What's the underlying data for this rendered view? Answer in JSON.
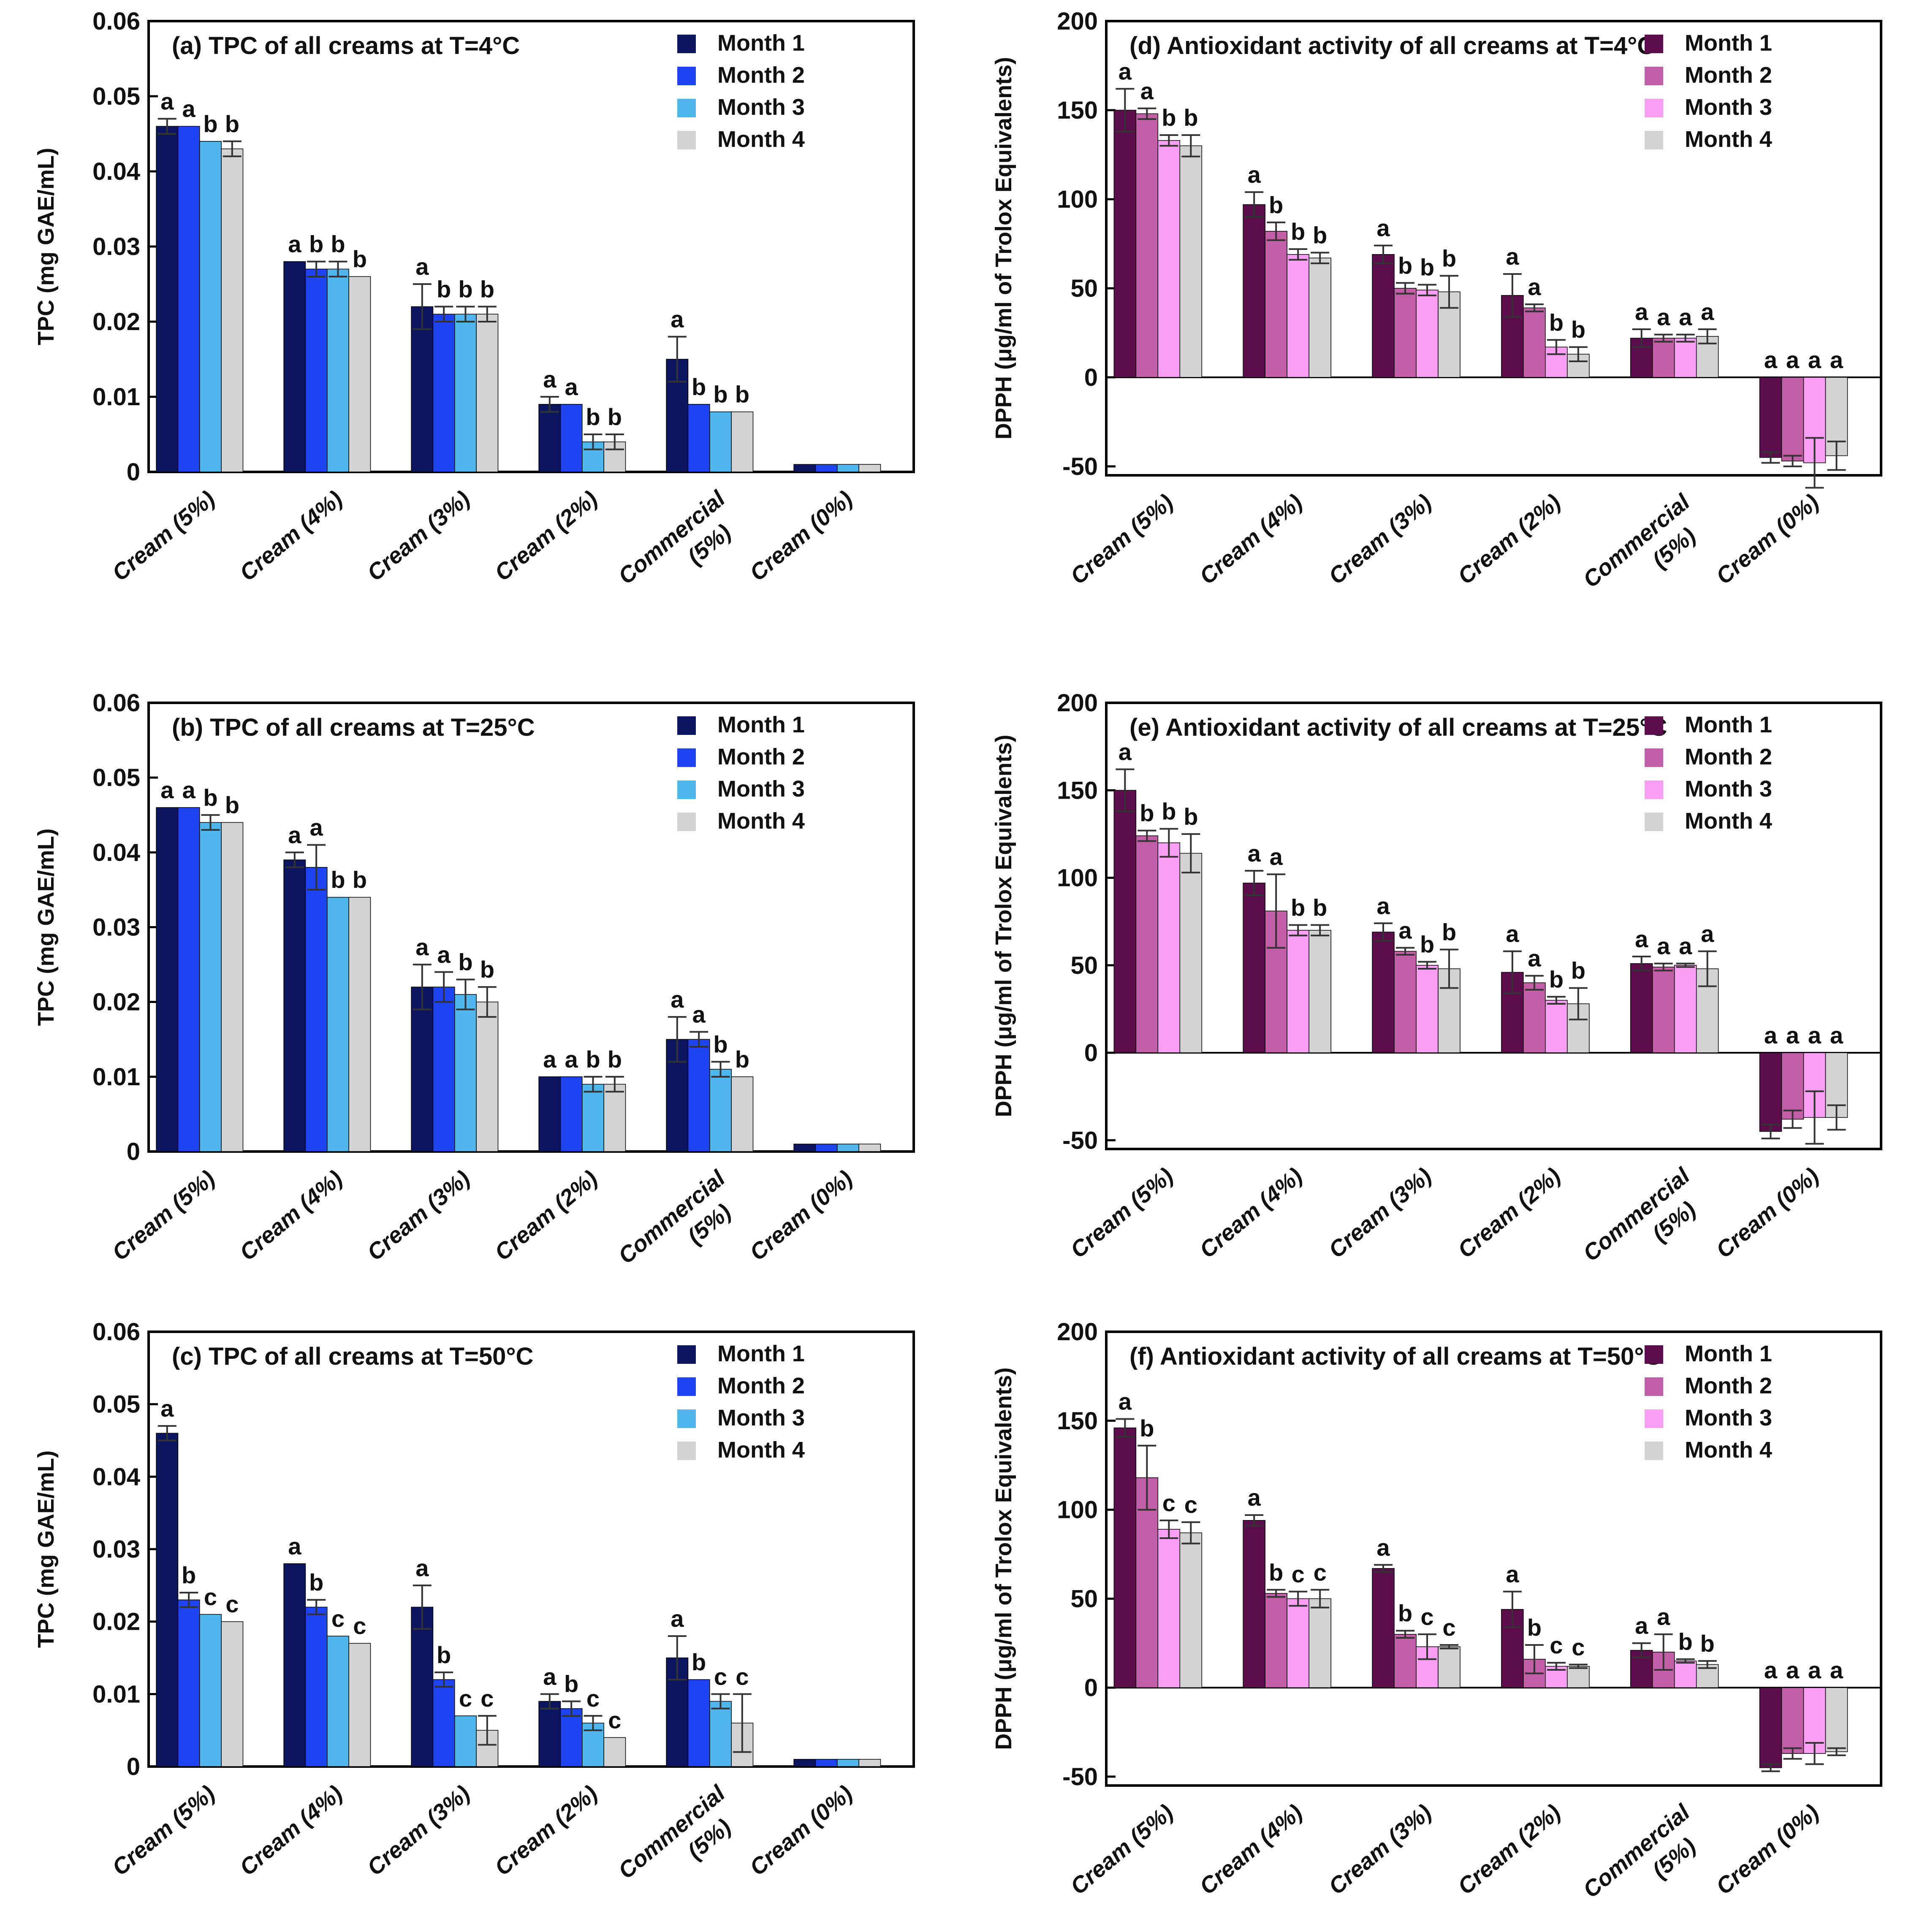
{
  "figure": {
    "colors": {
      "tpc": [
        "#0b1560",
        "#1d44f0",
        "#4fb6ee",
        "#d3d3d3"
      ],
      "dpph": [
        "#5c0d4c",
        "#c35fa6",
        "#fa9ff3",
        "#d3d3d3"
      ],
      "axis": "#000000"
    }
  },
  "chart_data": [
    {
      "id": "a",
      "type": "bar",
      "title": "(a) TPC of all creams at T=4°C",
      "ylabel": "TPC  (mg GAE/mL)",
      "ylim": [
        0,
        0.06
      ],
      "yticks": [
        "0",
        "0.01",
        "0.02",
        "0.03",
        "0.04",
        "0.05",
        "0.06"
      ],
      "tick_values": [
        0,
        0.01,
        0.02,
        0.03,
        0.04,
        0.05,
        0.06
      ],
      "categories": [
        [
          "Cream (5%)"
        ],
        [
          "Cream (4%)"
        ],
        [
          "Cream (3%)"
        ],
        [
          "Cream (2%)"
        ],
        [
          "Commercial",
          "(5%)"
        ],
        [
          "Cream (0%)"
        ]
      ],
      "palette": "tpc",
      "legend_position": "top-right",
      "series": [
        {
          "name": "Month 1",
          "values": [
            0.046,
            0.028,
            0.022,
            0.009,
            0.015,
            0.001
          ],
          "errors": [
            0.001,
            0.0,
            0.003,
            0.001,
            0.003,
            0.0
          ],
          "labels": [
            "a",
            "a",
            "a",
            "a",
            "a",
            ""
          ]
        },
        {
          "name": "Month 2",
          "values": [
            0.046,
            0.027,
            0.021,
            0.009,
            0.009,
            0.001
          ],
          "errors": [
            0.0,
            0.001,
            0.001,
            0.0,
            0.0,
            0.0
          ],
          "labels": [
            "a",
            "b",
            "b",
            "a",
            "b",
            ""
          ]
        },
        {
          "name": "Month 3",
          "values": [
            0.044,
            0.027,
            0.021,
            0.004,
            0.008,
            0.001
          ],
          "errors": [
            0.0,
            0.001,
            0.001,
            0.001,
            0.0,
            0.0
          ],
          "labels": [
            "b",
            "b",
            "b",
            "b",
            "b",
            ""
          ]
        },
        {
          "name": "Month 4",
          "values": [
            0.043,
            0.026,
            0.021,
            0.004,
            0.008,
            0.001
          ],
          "errors": [
            0.001,
            0.0,
            0.001,
            0.001,
            0.0,
            0.0
          ],
          "labels": [
            "b",
            "b",
            "b",
            "b",
            "b",
            ""
          ]
        }
      ]
    },
    {
      "id": "d",
      "type": "bar",
      "title": "(d) Antioxidant activity of all creams at T=4°C",
      "ylabel": "DPPH (μg/ml  of Trolox Equivalents)",
      "ylim": [
        -55,
        200
      ],
      "yticks": [
        "-50",
        "0",
        "50",
        "100",
        "150",
        "200"
      ],
      "tick_values": [
        -50,
        0,
        50,
        100,
        150,
        200
      ],
      "categories": [
        [
          "Cream (5%)"
        ],
        [
          "Cream (4%)"
        ],
        [
          "Cream (3%)"
        ],
        [
          "Cream (2%)"
        ],
        [
          "Commercial",
          "(5%)"
        ],
        [
          "Cream (0%)"
        ]
      ],
      "palette": "dpph",
      "legend_position": "top-right",
      "series": [
        {
          "name": "Month 1",
          "values": [
            150,
            97,
            69,
            46,
            22,
            -45
          ],
          "errors": [
            12,
            7,
            5,
            12,
            5,
            3
          ],
          "labels": [
            "a",
            "a",
            "a",
            "a",
            "a",
            "a"
          ]
        },
        {
          "name": "Month 2",
          "values": [
            148,
            82,
            50,
            39,
            22,
            -47
          ],
          "errors": [
            3,
            5,
            3,
            2,
            2,
            3
          ],
          "labels": [
            "a",
            "b",
            "b",
            "a",
            "a",
            "a"
          ]
        },
        {
          "name": "Month 3",
          "values": [
            133,
            69,
            49,
            17,
            22,
            -48
          ],
          "errors": [
            3,
            3,
            3,
            4,
            2,
            14
          ],
          "labels": [
            "b",
            "b",
            "b",
            "b",
            "a",
            "a"
          ]
        },
        {
          "name": "Month 4",
          "values": [
            130,
            67,
            48,
            13,
            23,
            -44
          ],
          "errors": [
            6,
            3,
            9,
            4,
            4,
            8
          ],
          "labels": [
            "b",
            "b",
            "b",
            "b",
            "a",
            "a"
          ]
        }
      ]
    },
    {
      "id": "b",
      "type": "bar",
      "title": "(b) TPC of all creams at T=25°C",
      "ylabel": "TPC  (mg GAE/mL)",
      "ylim": [
        0,
        0.06
      ],
      "yticks": [
        "0",
        "0.01",
        "0.02",
        "0.03",
        "0.04",
        "0.05",
        "0.06"
      ],
      "tick_values": [
        0,
        0.01,
        0.02,
        0.03,
        0.04,
        0.05,
        0.06
      ],
      "categories": [
        [
          "Cream (5%)"
        ],
        [
          "Cream (4%)"
        ],
        [
          "Cream (3%)"
        ],
        [
          "Cream (2%)"
        ],
        [
          "Commercial",
          "(5%)"
        ],
        [
          "Cream (0%)"
        ]
      ],
      "palette": "tpc",
      "legend_position": "top-right",
      "series": [
        {
          "name": "Month 1",
          "values": [
            0.046,
            0.039,
            0.022,
            0.01,
            0.015,
            0.001
          ],
          "errors": [
            0.0,
            0.001,
            0.003,
            0.0,
            0.003,
            0.0
          ],
          "labels": [
            "a",
            "a",
            "a",
            "a",
            "a",
            ""
          ]
        },
        {
          "name": "Month 2",
          "values": [
            0.046,
            0.038,
            0.022,
            0.01,
            0.015,
            0.001
          ],
          "errors": [
            0.0,
            0.003,
            0.002,
            0.0,
            0.001,
            0.0
          ],
          "labels": [
            "a",
            "a",
            "a",
            "a",
            "a",
            ""
          ]
        },
        {
          "name": "Month 3",
          "values": [
            0.044,
            0.034,
            0.021,
            0.009,
            0.011,
            0.001
          ],
          "errors": [
            0.001,
            0.0,
            0.002,
            0.001,
            0.001,
            0.0
          ],
          "labels": [
            "b",
            "b",
            "b",
            "b",
            "b",
            ""
          ]
        },
        {
          "name": "Month 4",
          "values": [
            0.044,
            0.034,
            0.02,
            0.009,
            0.01,
            0.001
          ],
          "errors": [
            0.0,
            0.0,
            0.002,
            0.001,
            0.0,
            0.0
          ],
          "labels": [
            "b",
            "b",
            "b",
            "b",
            "b",
            ""
          ]
        }
      ]
    },
    {
      "id": "e",
      "type": "bar",
      "title": "(e) Antioxidant activity of all creams at T=25°C",
      "ylabel": "DPPH (μg/ml  of Trolox Equivalents)",
      "ylim": [
        -55,
        200
      ],
      "yticks": [
        "-50",
        "0",
        "50",
        "100",
        "150",
        "200"
      ],
      "tick_values": [
        -50,
        0,
        50,
        100,
        150,
        200
      ],
      "categories": [
        [
          "Cream (5%)"
        ],
        [
          "Cream (4%)"
        ],
        [
          "Cream (3%)"
        ],
        [
          "Cream (2%)"
        ],
        [
          "Commercial",
          "(5%)"
        ],
        [
          "Cream (0%)"
        ]
      ],
      "palette": "dpph",
      "legend_position": "top-right",
      "series": [
        {
          "name": "Month 1",
          "values": [
            150,
            97,
            69,
            46,
            51,
            -45
          ],
          "errors": [
            12,
            7,
            5,
            12,
            4,
            4
          ],
          "labels": [
            "a",
            "a",
            "a",
            "a",
            "a",
            "a"
          ]
        },
        {
          "name": "Month 2",
          "values": [
            124,
            81,
            58,
            40,
            49,
            -38
          ],
          "errors": [
            3,
            21,
            2,
            4,
            2,
            5
          ],
          "labels": [
            "b",
            "a",
            "a",
            "a",
            "a",
            "a"
          ]
        },
        {
          "name": "Month 3",
          "values": [
            120,
            70,
            50,
            30,
            50,
            -37
          ],
          "errors": [
            8,
            3,
            2,
            2,
            1,
            15
          ],
          "labels": [
            "b",
            "b",
            "b",
            "b",
            "a",
            "a"
          ]
        },
        {
          "name": "Month 4",
          "values": [
            114,
            70,
            48,
            28,
            48,
            -37
          ],
          "errors": [
            11,
            3,
            11,
            9,
            10,
            7
          ],
          "labels": [
            "b",
            "b",
            "b",
            "b",
            "a",
            "a"
          ]
        }
      ]
    },
    {
      "id": "c",
      "type": "bar",
      "title": "(c) TPC of all creams at T=50°C",
      "ylabel": "TPC  (mg GAE/mL)",
      "ylim": [
        0,
        0.06
      ],
      "yticks": [
        "0",
        "0.01",
        "0.02",
        "0.03",
        "0.04",
        "0.05",
        "0.06"
      ],
      "tick_values": [
        0,
        0.01,
        0.02,
        0.03,
        0.04,
        0.05,
        0.06
      ],
      "categories": [
        [
          "Cream (5%)"
        ],
        [
          "Cream (4%)"
        ],
        [
          "Cream (3%)"
        ],
        [
          "Cream (2%)"
        ],
        [
          "Commercial",
          "(5%)"
        ],
        [
          "Cream (0%)"
        ]
      ],
      "palette": "tpc",
      "legend_position": "top-right",
      "series": [
        {
          "name": "Month 1",
          "values": [
            0.046,
            0.028,
            0.022,
            0.009,
            0.015,
            0.001
          ],
          "errors": [
            0.001,
            0.0,
            0.003,
            0.001,
            0.003,
            0.0
          ],
          "labels": [
            "a",
            "a",
            "a",
            "a",
            "a",
            ""
          ]
        },
        {
          "name": "Month 2",
          "values": [
            0.023,
            0.022,
            0.012,
            0.008,
            0.012,
            0.001
          ],
          "errors": [
            0.001,
            0.001,
            0.001,
            0.001,
            0.0,
            0.0
          ],
          "labels": [
            "b",
            "b",
            "b",
            "b",
            "b",
            ""
          ]
        },
        {
          "name": "Month 3",
          "values": [
            0.021,
            0.018,
            0.007,
            0.006,
            0.009,
            0.001
          ],
          "errors": [
            0.0,
            0.0,
            0.0,
            0.001,
            0.001,
            0.0
          ],
          "labels": [
            "c",
            "c",
            "c",
            "c",
            "c",
            ""
          ]
        },
        {
          "name": "Month 4",
          "values": [
            0.02,
            0.017,
            0.005,
            0.004,
            0.006,
            0.001
          ],
          "errors": [
            0.0,
            0.0,
            0.002,
            0.0,
            0.004,
            0.0
          ],
          "labels": [
            "c",
            "c",
            "c",
            "c",
            "c",
            ""
          ]
        }
      ]
    },
    {
      "id": "f",
      "type": "bar",
      "title": "(f) Antioxidant activity of all creams at T=50°C",
      "ylabel": "DPPH (μg/ml  of Trolox Equivalents)",
      "ylim": [
        -55,
        200
      ],
      "yticks": [
        "-50",
        "0",
        "50",
        "100",
        "150",
        "200"
      ],
      "tick_values": [
        -50,
        0,
        50,
        100,
        150,
        200
      ],
      "categories": [
        [
          "Cream (5%)"
        ],
        [
          "Cream (4%)"
        ],
        [
          "Cream (3%)"
        ],
        [
          "Cream (2%)"
        ],
        [
          "Commercial",
          "(5%)"
        ],
        [
          "Cream (0%)"
        ]
      ],
      "palette": "dpph",
      "legend_position": "top-right",
      "series": [
        {
          "name": "Month 1",
          "values": [
            146,
            94,
            67,
            44,
            21,
            -45
          ],
          "errors": [
            5,
            3,
            2,
            10,
            4,
            2
          ],
          "labels": [
            "a",
            "a",
            "a",
            "a",
            "a",
            "a"
          ]
        },
        {
          "name": "Month 2",
          "values": [
            118,
            53,
            30,
            16,
            20,
            -37
          ],
          "errors": [
            18,
            2,
            2,
            8,
            10,
            3
          ],
          "labels": [
            "b",
            "b",
            "b",
            "b",
            "a",
            "a"
          ]
        },
        {
          "name": "Month 3",
          "values": [
            89,
            50,
            23,
            12,
            15,
            -37
          ],
          "errors": [
            5,
            4,
            7,
            2,
            1,
            6
          ],
          "labels": [
            "c",
            "c",
            "c",
            "c",
            "b",
            "a"
          ]
        },
        {
          "name": "Month 4",
          "values": [
            87,
            50,
            23,
            12,
            13,
            -36
          ],
          "errors": [
            6,
            5,
            1,
            1,
            2,
            2
          ],
          "labels": [
            "c",
            "c",
            "c",
            "c",
            "b",
            "a"
          ]
        }
      ]
    }
  ]
}
